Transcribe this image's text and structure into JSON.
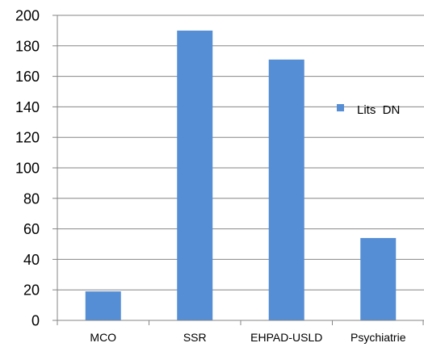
{
  "chart_data": {
    "type": "bar",
    "categories": [
      "MCO",
      "SSR",
      "EHPAD-USLD",
      "Psychiatrie"
    ],
    "series": [
      {
        "name": "Lits  DN",
        "values": [
          19,
          190,
          171,
          54
        ],
        "color": "#558ED5"
      }
    ],
    "ylim": [
      0,
      200
    ],
    "yticks": [
      0,
      20,
      40,
      60,
      80,
      100,
      120,
      140,
      160,
      180,
      200
    ],
    "grid": true,
    "legend": {
      "position": "right",
      "entries": [
        "Lits  DN"
      ]
    }
  }
}
